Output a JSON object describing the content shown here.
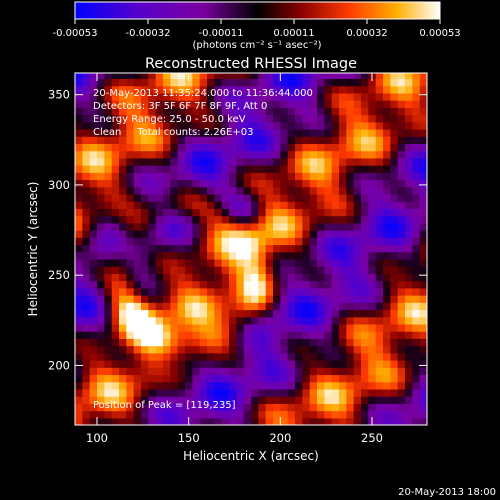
{
  "chart_data": {
    "type": "heatmap",
    "title": "Reconstructed RHESSI Image",
    "xlabel": "Heliocentric X (arcsec)",
    "ylabel": "Heliocentric Y (arcsec)",
    "xlim": [
      88,
      280
    ],
    "ylim": [
      167,
      362
    ],
    "x_ticks": [
      100,
      150,
      200,
      250
    ],
    "y_ticks": [
      200,
      250,
      300,
      350
    ],
    "colorbar": {
      "label": "(photons cm⁻² s⁻¹ asec⁻²)",
      "range": [
        -0.00053,
        0.00053
      ],
      "ticks": [
        "-0.00053",
        "-0.00032",
        "-0.00011",
        "0.00011",
        "0.00032",
        "0.00053"
      ],
      "colors": [
        "#0000ff",
        "#5a00c8",
        "#7a00a0",
        "#000000",
        "#8a0000",
        "#ff3a00",
        "#ffae00",
        "#ffffff"
      ]
    },
    "annotations": [
      "20-May-2013 11:35:24.000 to 11:36:44.000",
      "Detectors: 3F 5F 6F 7F 8F 9F, Att 0",
      "Energy Range: 25.0 - 50.0 keV",
      "Clean     Total counts: 2.26E+03"
    ],
    "peak_label": "Position of Peak = [119,235]",
    "peak": [
      119,
      235
    ]
  },
  "timestamp": "20-May-2013 18:00"
}
